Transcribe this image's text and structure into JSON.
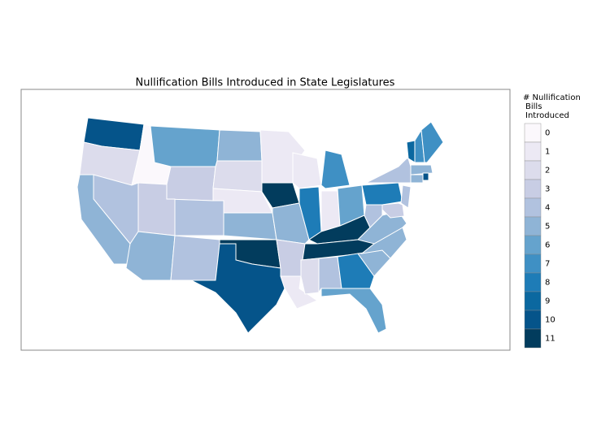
{
  "chart_data": {
    "type": "choropleth",
    "title": "Nullification Bills Introduced in State Legislatures",
    "legend": {
      "title": [
        "# Nullification",
        "Bills",
        "Introduced"
      ],
      "levels": [
        0,
        1,
        2,
        3,
        4,
        5,
        6,
        7,
        8,
        9,
        10,
        11
      ],
      "colors": [
        "#fbf8fc",
        "#ece9f4",
        "#dcdcec",
        "#c8cde4",
        "#b1c2df",
        "#8fb4d6",
        "#65a3cd",
        "#3f90c4",
        "#1e7cb7",
        "#0b68a0",
        "#05548a",
        "#023c5d"
      ]
    },
    "values": [
      10,
      2,
      0,
      6,
      3,
      5,
      2,
      1,
      4,
      5,
      3,
      4,
      5,
      5,
      4,
      11,
      10,
      1,
      11,
      5,
      3,
      1,
      1,
      7,
      8,
      1,
      6,
      11,
      11,
      2,
      4,
      8,
      6,
      5,
      5,
      5,
      4,
      8,
      4,
      9,
      7,
      7,
      5,
      5,
      10,
      4,
      3
    ]
  }
}
